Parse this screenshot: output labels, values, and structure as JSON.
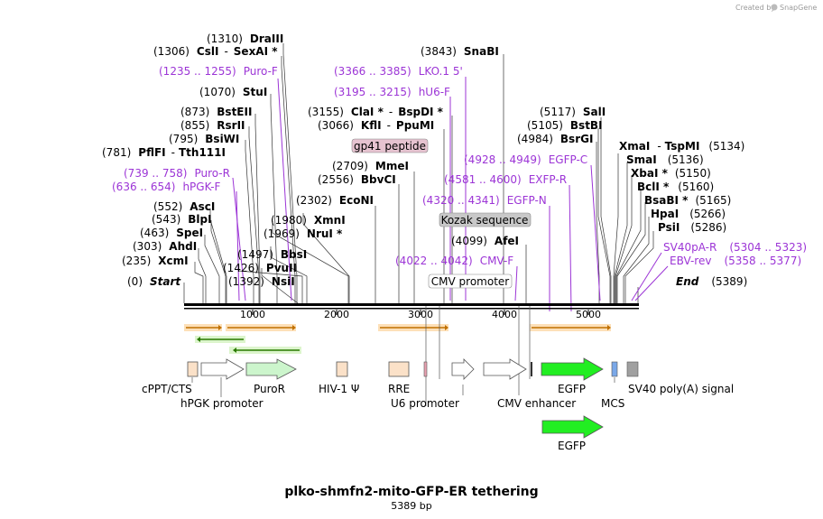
{
  "title": "plko-shmfn2-mito-GFP-ER tethering",
  "subtitle": "5389 bp",
  "credit": {
    "text": "Created by",
    "brand": "SnapGene"
  },
  "ruler": {
    "labels": [
      "1000",
      "2000",
      "3000",
      "4000",
      "5000"
    ]
  },
  "sites": [
    {
      "name": "DraIII",
      "pos": "(1310)"
    },
    {
      "name": "CslI",
      "dash": "-",
      "name2": "SexAI *",
      "pos": "(1306)"
    },
    {
      "name": "StuI",
      "pos": "(1070)"
    },
    {
      "name": "BstEII",
      "pos": "(873)"
    },
    {
      "name": "RsrII",
      "pos": "(855)"
    },
    {
      "name": "BsiWI",
      "pos": "(795)"
    },
    {
      "name": "PflFI",
      "dash": "-",
      "name2": "Tth111I",
      "pos": "(781)"
    },
    {
      "name": "AscI",
      "pos": "(552)"
    },
    {
      "name": "BlpI",
      "pos": "(543)"
    },
    {
      "name": "SpeI",
      "pos": "(463)"
    },
    {
      "name": "AhdI",
      "pos": "(303)"
    },
    {
      "name": "XcmI",
      "pos": "(235)"
    },
    {
      "name": "Start",
      "pos": "(0)"
    },
    {
      "name": "PvuII",
      "pos": "(1426)"
    },
    {
      "name": "NsiI",
      "pos": "(1392)"
    },
    {
      "name": "BbsI",
      "pos": "(1497)"
    },
    {
      "name": "XmnI",
      "pos": "(1980)"
    },
    {
      "name": "NruI *",
      "pos": "(1969)"
    },
    {
      "name": "EcoNI",
      "pos": "(2302)"
    },
    {
      "name": "BbvCI",
      "pos": "(2556)"
    },
    {
      "name": "MmeI",
      "pos": "(2709)"
    },
    {
      "name": "ClaI *",
      "dash": "-",
      "name2": "BspDI *",
      "pos": "(3155)"
    },
    {
      "name": "KflI",
      "dash": "-",
      "name2": "PpuMI",
      "pos": "(3066)"
    },
    {
      "name": "SnaBI",
      "pos": "(3843)"
    },
    {
      "name": "AfeI",
      "pos": "(4099)"
    },
    {
      "name": "SalI",
      "pos": "(5117)"
    },
    {
      "name": "BstBI",
      "pos": "(5105)"
    },
    {
      "name": "BsrGI",
      "pos": "(4984)"
    },
    {
      "name": "XmaI",
      "dash": "-",
      "name2": "TspMI",
      "pos": "(5134)"
    },
    {
      "name": "SmaI",
      "pos": "(5136)"
    },
    {
      "name": "XbaI *",
      "pos": "(5150)"
    },
    {
      "name": "BclI *",
      "pos": "(5160)"
    },
    {
      "name": "BsaBI *",
      "pos": "(5165)"
    },
    {
      "name": "HpaI",
      "pos": "(5266)"
    },
    {
      "name": "PsiI",
      "pos": "(5286)"
    },
    {
      "name": "End",
      "pos": "(5389)"
    }
  ],
  "primers": [
    {
      "range": "(1235 .. 1255)",
      "name": "Puro-F"
    },
    {
      "range": "(739 .. 758)",
      "name": "Puro-R"
    },
    {
      "range": "(636 .. 654)",
      "name": "hPGK-F"
    },
    {
      "range": "(3366 .. 3385)",
      "name": "LKO.1 5'"
    },
    {
      "range": "(3195 .. 3215)",
      "name": "hU6-F"
    },
    {
      "range": "(4928 .. 4949)",
      "name": "EGFP-C"
    },
    {
      "range": "(4581 .. 4600)",
      "name": "EXFP-R"
    },
    {
      "range": "(4320 .. 4341)",
      "name": "EGFP-N"
    },
    {
      "range": "(4022 .. 4042)",
      "name": "CMV-F"
    },
    {
      "range": "(5304 .. 5323)",
      "name": "SV40pA-R"
    },
    {
      "range": "(5358 .. 5377)",
      "name": "EBV-rev"
    }
  ],
  "boxes": [
    {
      "label": "gp41 peptide"
    },
    {
      "label": "Kozak sequence"
    },
    {
      "label": "CMV promoter"
    }
  ],
  "features": [
    {
      "label": "cPPT/CTS"
    },
    {
      "label": "hPGK promoter"
    },
    {
      "label": "PuroR"
    },
    {
      "label": "HIV-1 Ψ"
    },
    {
      "label": "RRE"
    },
    {
      "label": "U6 promoter"
    },
    {
      "label": "CMV enhancer"
    },
    {
      "label": "EGFP"
    },
    {
      "label": "MCS"
    },
    {
      "label": "SV40 poly(A) signal"
    },
    {
      "label": "EGFP"
    }
  ],
  "colors": {
    "primer": "#9c35d6",
    "egfp": "#22ee22",
    "puro": "#ccf5cc",
    "orf": "#f5a623",
    "mcs": "#7aa8e8",
    "polyA": "#a0a0a0",
    "box": "#fbe1c8"
  }
}
